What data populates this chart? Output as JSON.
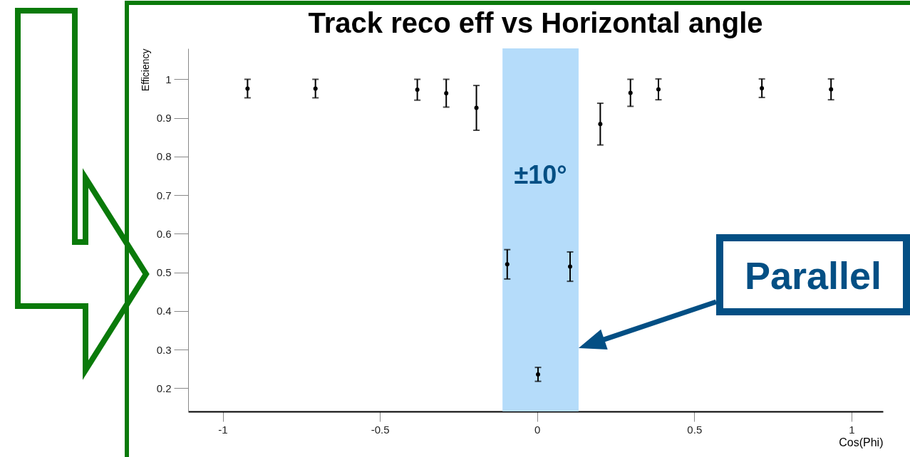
{
  "chart_data": {
    "type": "scatter",
    "title": "Track reco eff vs Horizontal angle",
    "xlabel": "Cos(Phi)",
    "ylabel": "Efficiency",
    "x": [
      -0.921,
      -0.705,
      -0.381,
      -0.289,
      -0.193,
      -0.095,
      0.003,
      0.105,
      0.201,
      0.297,
      0.386,
      0.715,
      0.935
    ],
    "series": [
      {
        "color": "#000000",
        "values": [
          0.976,
          0.976,
          0.973,
          0.964,
          0.926,
          0.521,
          0.236,
          0.515,
          0.884,
          0.965,
          0.974,
          0.977,
          0.974
        ],
        "errors": [
          0.024,
          0.024,
          0.027,
          0.036,
          0.058,
          0.038,
          0.018,
          0.038,
          0.054,
          0.035,
          0.027,
          0.024,
          0.027
        ]
      }
    ],
    "xlim": [
      -1.11,
      1.1
    ],
    "xticks": [
      -1,
      -0.5,
      0,
      0.5,
      1
    ],
    "ylim": [
      0.14,
      1.08
    ],
    "yticks": [
      0.2,
      0.3,
      0.4,
      0.5,
      0.6,
      0.7,
      0.8,
      0.9,
      1
    ],
    "bands": [
      {
        "axis": "x",
        "from": -0.11,
        "to": 0.132,
        "label": "±10°",
        "color": "#b5dcfa"
      }
    ],
    "annotations": [
      "Parallel"
    ],
    "grid": false
  }
}
